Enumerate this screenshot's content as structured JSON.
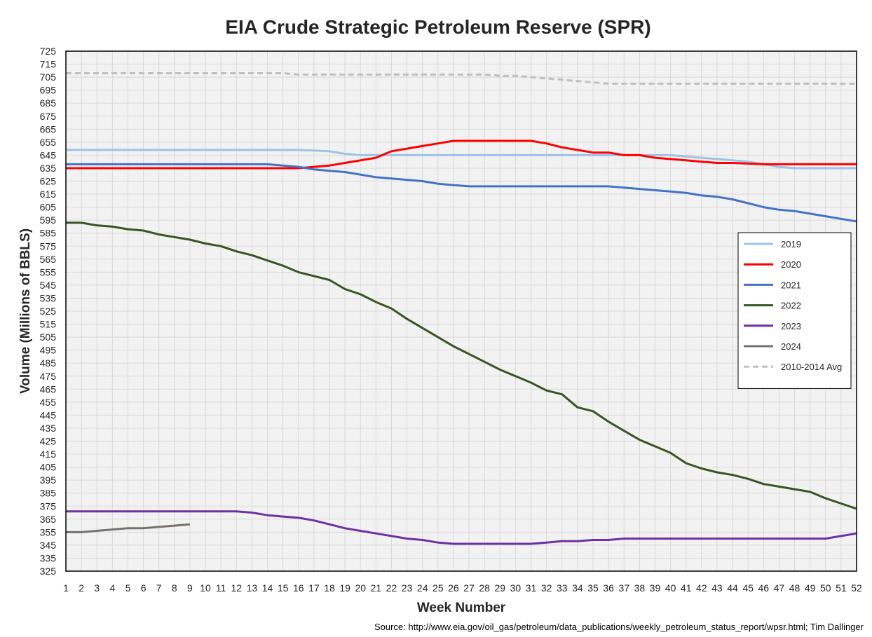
{
  "chart_data": {
    "type": "line",
    "title": "EIA Crude Strategic Petroleum Reserve (SPR)",
    "xlabel": "Week Number",
    "ylabel": "Volume (Millions of BBLS)",
    "source": "Source: http://www.eia.gov/oil_gas/petroleum/data_publications/weekly_petroleum_status_report/wpsr.html; Tim Dallinger",
    "xlim": [
      1,
      52
    ],
    "ylim": [
      325,
      725
    ],
    "ytick_step": 10,
    "grid": true,
    "legend_position": "right",
    "series": [
      {
        "name": "2019",
        "color": "#9dc3e6",
        "dash": false,
        "x": [
          1,
          16,
          18,
          19,
          20,
          21,
          22,
          38,
          40,
          41,
          42,
          44,
          45,
          46,
          47,
          48,
          52
        ],
        "y": [
          649,
          649,
          648,
          646,
          645,
          645,
          645,
          645,
          645,
          644,
          643,
          641,
          640,
          638,
          636,
          635,
          635
        ]
      },
      {
        "name": "2020",
        "color": "#ff0000",
        "dash": false,
        "x": [
          1,
          16,
          17,
          18,
          19,
          20,
          21,
          22,
          23,
          24,
          25,
          26,
          27,
          31,
          32,
          33,
          34,
          35,
          36,
          37,
          38,
          39,
          40,
          41,
          42,
          43,
          44,
          46,
          52
        ],
        "y": [
          635,
          635,
          636,
          637,
          639,
          641,
          643,
          648,
          650,
          652,
          654,
          656,
          656,
          656,
          654,
          651,
          649,
          647,
          647,
          645,
          645,
          643,
          642,
          641,
          640,
          639,
          639,
          638,
          638
        ]
      },
      {
        "name": "2021",
        "color": "#4472c4",
        "dash": false,
        "x": [
          1,
          14,
          15,
          16,
          17,
          18,
          19,
          20,
          21,
          22,
          23,
          24,
          25,
          26,
          27,
          36,
          37,
          38,
          39,
          40,
          41,
          42,
          43,
          44,
          45,
          46,
          47,
          48,
          49,
          50,
          51,
          52
        ],
        "y": [
          638,
          638,
          637,
          636,
          634,
          633,
          632,
          630,
          628,
          627,
          626,
          625,
          623,
          622,
          621,
          621,
          620,
          619,
          618,
          617,
          616,
          614,
          613,
          611,
          608,
          605,
          603,
          602,
          600,
          598,
          596,
          594
        ]
      },
      {
        "name": "2022",
        "color": "#375623",
        "dash": false,
        "x": [
          1,
          2,
          3,
          4,
          5,
          6,
          7,
          8,
          9,
          10,
          11,
          12,
          13,
          14,
          15,
          16,
          17,
          18,
          19,
          20,
          21,
          22,
          23,
          24,
          25,
          26,
          27,
          28,
          29,
          30,
          31,
          32,
          33,
          34,
          35,
          36,
          37,
          38,
          39,
          40,
          41,
          42,
          43,
          44,
          45,
          46,
          47,
          48,
          49,
          50,
          51,
          52
        ],
        "y": [
          593,
          593,
          591,
          590,
          588,
          587,
          584,
          582,
          580,
          577,
          575,
          571,
          568,
          564,
          560,
          555,
          552,
          549,
          542,
          538,
          532,
          527,
          519,
          512,
          505,
          498,
          492,
          486,
          480,
          475,
          470,
          464,
          461,
          451,
          448,
          440,
          433,
          426,
          421,
          416,
          408,
          404,
          401,
          399,
          396,
          392,
          390,
          388,
          386,
          381,
          377,
          373
        ]
      },
      {
        "name": "2023",
        "color": "#7030a0",
        "dash": false,
        "x": [
          1,
          12,
          13,
          14,
          15,
          16,
          17,
          18,
          19,
          20,
          21,
          22,
          23,
          24,
          25,
          26,
          27,
          28,
          29,
          30,
          31,
          32,
          33,
          34,
          35,
          36,
          37,
          38,
          39,
          40,
          41,
          42,
          43,
          44,
          45,
          46,
          47,
          48,
          49,
          50,
          51,
          52
        ],
        "y": [
          371,
          371,
          370,
          368,
          367,
          366,
          364,
          361,
          358,
          356,
          354,
          352,
          350,
          349,
          347,
          346,
          346,
          346,
          346,
          346,
          346,
          347,
          348,
          348,
          349,
          349,
          350,
          350,
          350,
          350,
          350,
          350,
          350,
          350,
          350,
          350,
          350,
          350,
          350,
          350,
          352,
          354
        ]
      },
      {
        "name": "2024",
        "color": "#767171",
        "dash": false,
        "x": [
          1,
          2,
          3,
          4,
          5,
          6,
          7,
          8,
          9
        ],
        "y": [
          355,
          355,
          356,
          357,
          358,
          358,
          359,
          360,
          361
        ]
      },
      {
        "name": "2010-2014 Avg",
        "color": "#bfbfbf",
        "dash": true,
        "x": [
          1,
          15,
          16,
          18,
          19,
          28,
          29,
          30,
          31,
          32,
          33,
          34,
          35,
          36,
          52
        ],
        "y": [
          708,
          708,
          707,
          707,
          707,
          707,
          706,
          706,
          705,
          704,
          703,
          702,
          701,
          700,
          700
        ]
      }
    ]
  }
}
